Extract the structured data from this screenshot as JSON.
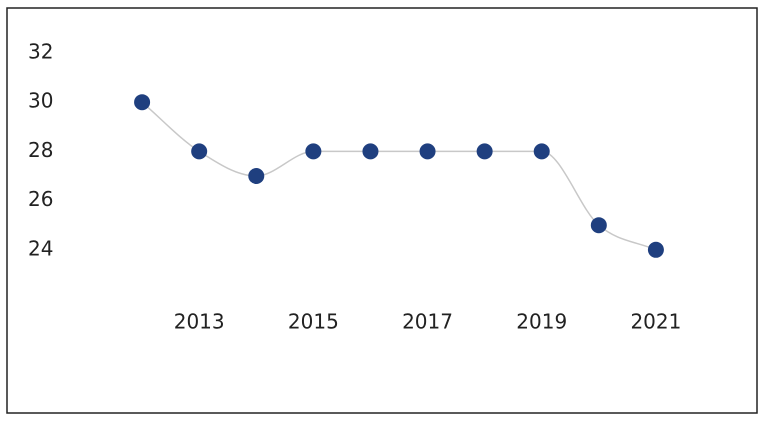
{
  "chart_data": {
    "type": "line",
    "x": [
      2012,
      2013,
      2014,
      2015,
      2016,
      2017,
      2018,
      2019,
      2020,
      2021
    ],
    "values": [
      30,
      28,
      27,
      28,
      28,
      28,
      28,
      28,
      25,
      24
    ],
    "color": "#1f3f7f",
    "line_color": "#c8c8c8",
    "xlim": [
      2011,
      2022
    ],
    "xticks": [
      2013,
      2015,
      2017,
      2019,
      2021
    ],
    "ylim": [
      22,
      32
    ],
    "yticks": [
      24,
      26,
      28,
      30,
      32
    ],
    "smooth": true,
    "grid": false
  }
}
